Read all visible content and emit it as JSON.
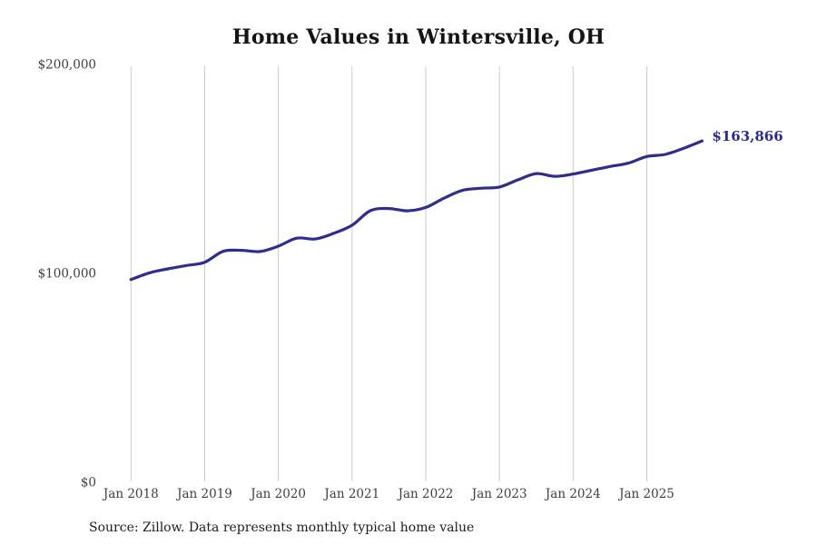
{
  "page": {
    "source_note": "Source: Zillow. Data represents monthly typical home value"
  },
  "colors": {
    "line": "#322d8c",
    "annotation": "#2b2b8a",
    "grid": "#cccccc",
    "axis_text": "#3f3f3f",
    "title_text": "#141414"
  },
  "chart_data": {
    "type": "line",
    "title": "Home Values in Wintersville, OH",
    "xlabel": "",
    "ylabel": "",
    "ylim": [
      0,
      200000
    ],
    "grid": "vertical-only",
    "legend": "none",
    "y_ticks": [
      {
        "value": 0,
        "label": "$0"
      },
      {
        "value": 100000,
        "label": "$100,000"
      },
      {
        "value": 200000,
        "label": "$200,000"
      }
    ],
    "x_tick_labels": [
      "Jan 2018",
      "Jan 2019",
      "Jan 2020",
      "Jan 2021",
      "Jan 2022",
      "Jan 2023",
      "Jan 2024",
      "Jan 2025"
    ],
    "annotation": "$163,866",
    "final_value": 163866,
    "series": [
      {
        "name": "Monthly typical home value",
        "x": [
          "Jan 2018",
          "Apr 2018",
          "Jul 2018",
          "Oct 2018",
          "Jan 2019",
          "Apr 2019",
          "Jul 2019",
          "Oct 2019",
          "Jan 2020",
          "Apr 2020",
          "Jul 2020",
          "Oct 2020",
          "Jan 2021",
          "Apr 2021",
          "Jul 2021",
          "Oct 2021",
          "Jan 2022",
          "Apr 2022",
          "Jul 2022",
          "Oct 2022",
          "Jan 2023",
          "Apr 2023",
          "Jul 2023",
          "Oct 2023",
          "Jan 2024",
          "Apr 2024",
          "Jul 2024",
          "Oct 2024",
          "Jan 2025",
          "Apr 2025",
          "Jul 2025",
          "Oct 2025"
        ],
        "values": [
          97500,
          100700,
          102600,
          104200,
          105800,
          111000,
          111500,
          110900,
          113500,
          117300,
          116900,
          119600,
          123500,
          130500,
          131500,
          130400,
          132000,
          136500,
          140200,
          141200,
          141800,
          145200,
          148200,
          146900,
          148000,
          149800,
          151600,
          153200,
          156400,
          157400,
          160300,
          163866
        ]
      }
    ]
  }
}
